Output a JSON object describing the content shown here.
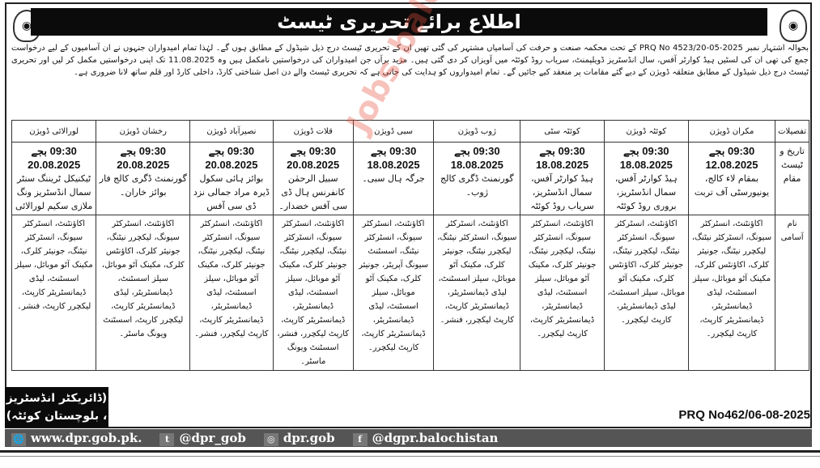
{
  "title": "اطلاع برائے تحریری ٹیسٹ",
  "intro": "بحوالہ اشتہار نمبر PRQ No 4523/20-05-2025 کے تحت محکمہ صنعت و حرفت کی آسامیاں مشتہر کی گئی تھیں ان کے تحریری ٹیسٹ درج ذیل شیڈول کے مطابق ہوں گے۔ لہٰذا تمام امیدواران جنہوں نے ان آسامیوں کے لیے درخواست جمع کی تھی ان کی لسٹیں ہیڈ کوارٹر آفس، سال انڈسٹریز ڈویلپمنٹ، سریاب روڈ کوئٹہ میں آویزاں کر دی گئی ہیں۔ مزید برآں جن امیدواران کی درخواستیں نامکمل ہیں وہ 11.08.2025 تک اپنی درخواستیں مکمل کر لیں اور تحریری ٹیسٹ درج ذیل شیڈول کے مطابق متعلقہ ڈویژن کے دیے گئے مقامات پر منعقد کیے جائیں گے۔ تمام امیدواروں کو ہدایت کی جاتی ہے کہ تحریری ٹیسٹ والے دن اصل شناختی کارڈ، داخلی کارڈ اور قلم ساتھ لانا ضروری ہے۔",
  "table": {
    "row_labels": [
      "تفصیلات",
      "تاریخ و ٹیسٹ مقام",
      "نام آسامی"
    ],
    "columns": [
      {
        "division": "مکران ڈویژن",
        "time": "09:30 بجے",
        "date": "12.08.2025",
        "venue": "بمقام لاء کالج، یونیورسٹی آف تربت",
        "posts": "اکاؤنٹنٹ، انسٹرکٹر سیونگ، انسٹرکٹر نیٹنگ، لیکچرر نیٹنگ، جونیئر کلرک، اکاؤنٹس کلرک، مکینک آٹو موبائل، سیلز اسسٹنٹ، لیڈی ڈیمانسٹریٹر، ڈیمانسٹریٹر کارپٹ، کارپٹ لیکچرر۔"
      },
      {
        "division": "کوئٹہ ڈویژن",
        "time": "09:30 بجے",
        "date": "18.08.2025",
        "venue": "ہیڈ کوارٹر آفس، سمال انڈسٹریز، بروری روڈ کوئٹہ",
        "posts": "اکاؤنٹنٹ، انسٹرکٹر سیونگ، انسٹرکٹر نیٹنگ، لیکچرر نیٹنگ، جونیئر کلرک، اکاؤنٹس کلرک، مکینک آٹو موبائل، سیلز اسسٹنٹ، لیڈی ڈیمانسٹریٹر، کارپٹ لیکچرر۔"
      },
      {
        "division": "کوئٹہ سٹی",
        "time": "09:30 بجے",
        "date": "18.08.2025",
        "venue": "ہیڈ کوارٹر آفس، سمال انڈسٹریز، سریاب روڈ کوئٹہ",
        "posts": "اکاؤنٹنٹ، انسٹرکٹر سیونگ، انسٹرکٹر نیٹنگ، لیکچرر نیٹنگ، جونیئر کلرک، مکینک آٹو موبائل، سیلز اسسٹنٹ، لیڈی ڈیمانسٹریٹر، ڈیمانسٹریٹر کارپٹ، کارپٹ لیکچرر۔"
      },
      {
        "division": "ژوب ڈویژن",
        "time": "09:30 بجے",
        "date": "18.08.2025",
        "venue": "گورنمنٹ ڈگری کالج ژوب۔",
        "posts": "اکاؤنٹنٹ، انسٹرکٹر سیونگ، انسٹرکٹر نیٹنگ، لیکچرر نیٹنگ، جونیئر کلرک، مکینک آٹو موبائل، سیلز اسسٹنٹ، لیڈی ڈیمانسٹریٹر، ڈیمانسٹریٹر کارپٹ، کارپٹ لیکچرر، فنشر۔"
      },
      {
        "division": "سبی ڈویژن",
        "time": "09:30 بجے",
        "date": "18.08.2025",
        "venue": "جرگہ ہال سبی۔",
        "posts": "اکاؤنٹنٹ، انسٹرکٹر سیونگ، انسٹرکٹر نیٹنگ، اسسٹنٹ سیونگ آپریٹر، جونیئر کلرک، مکینک آٹو موبائل، سیلز اسسٹنٹ، لیڈی ڈیمانسٹریٹر، ڈیمانسٹریٹر کارپٹ، کارپٹ لیکچرر۔"
      },
      {
        "division": "قلات ڈویژن",
        "time": "09:30 بجے",
        "date": "20.08.2025",
        "venue": "سبیل الرحمٰن کانفرنس ہال ڈی سی آفس خضدار۔",
        "posts": "اکاؤنٹنٹ، انسٹرکٹر سیونگ، انسٹرکٹر نیٹنگ، لیکچرر نیٹنگ، جونیئر کلرک، مکینک آٹو موبائل، سیلز اسسٹنٹ، لیڈی ڈیمانسٹریٹر، ڈیمانسٹریٹر کارپٹ، کارپٹ لیکچرر، فنشر، اسسٹنٹ ویونگ ماسٹر۔"
      },
      {
        "division": "نصیرآباد ڈویژن",
        "time": "09:30 بجے",
        "date": "20.08.2025",
        "venue": "بوائز ہائی سکول ڈیرہ مراد جمالی نزد ڈی سی آفس",
        "posts": "اکاؤنٹنٹ، انسٹرکٹر سیونگ، انسٹرکٹر نیٹنگ، لیکچرر نیٹنگ، جونیئر کلرک، مکینک آٹو موبائل، سیلز اسسٹنٹ، لیڈی ڈیمانسٹریٹر، ڈیمانسٹریٹر کارپٹ، کارپٹ لیکچرر، فنشر۔"
      },
      {
        "division": "رخشان ڈویژن",
        "time": "09:30 بجے",
        "date": "20.08.2025",
        "venue": "گورنمنٹ ڈگری کالج فار بوائز خاران۔",
        "posts": "اکاؤنٹنٹ، انسٹرکٹر سیونگ، لیکچرر نیٹنگ، جونیئر کلرک، اکاؤنٹس کلرک، مکینک آٹو موبائل، سیلز اسسٹنٹ، ڈیمانسٹریٹر، لیڈی ڈیمانسٹریٹر کارپٹ، لیکچرر کارپٹ، اسسٹنٹ ویونگ ماسٹر۔"
      },
      {
        "division": "لورالائی ڈویژن",
        "time": "09:30 بجے",
        "date": "20.08.2025",
        "venue": "ٹیکنیکل ٹریننگ سنٹر سمال انڈسٹریز ونگ ملازی سکیم لورالائی",
        "posts": "اکاؤنٹنٹ، انسٹرکٹر سیونگ، انسٹرکٹر نیٹنگ، جونیئر کلرک، مکینک آٹو موبائل، سیلز اسسٹنٹ، لیڈی ڈیمانسٹریٹر کارپٹ، لیکچرر کارپٹ، فنشر۔"
      }
    ]
  },
  "issuer": {
    "line1": "(ڈائریکٹر انڈسٹریز",
    "line2": "، بلوچستان کوئٹہ)"
  },
  "prq": "PRQ No462/06-08-2025",
  "footer": {
    "website": "www.dpr.gob.pk.",
    "twitter": "@dpr_gob",
    "instagram": "dpr.gob",
    "facebook": "@dgpr.balochistan"
  },
  "watermark": "Jobs.balochistan.com"
}
